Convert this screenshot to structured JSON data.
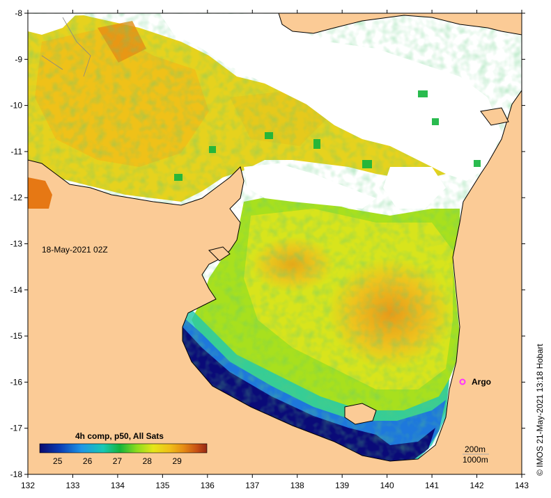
{
  "map": {
    "date_label": "18-May-2021 02Z",
    "credit": "© IMOS 21-May-2021 13:18 Hobart",
    "argo_label": "Argo",
    "depth_labels": [
      "200m",
      "1000m"
    ],
    "x_ticks": [
      "132",
      "133",
      "134",
      "135",
      "136",
      "137",
      "138",
      "139",
      "140",
      "141",
      "142",
      "143"
    ],
    "y_ticks": [
      "-8",
      "-9",
      "-10",
      "-11",
      "-12",
      "-13",
      "-14",
      "-15",
      "-16",
      "-17",
      "-18"
    ],
    "x_range": [
      132,
      143
    ],
    "y_range": [
      -18,
      -8
    ]
  },
  "legend": {
    "title": "4h comp, p50, All Sats",
    "ticks": [
      "25",
      "26",
      "27",
      "28",
      "29"
    ],
    "range": [
      24.4,
      30
    ]
  },
  "colors": {
    "land": "#fbcb96",
    "cloud": "#ffffff",
    "argo": "#ff33ff",
    "sst_scale": [
      "#0a0a6e",
      "#0a3cb4",
      "#1e96e6",
      "#19c8b4",
      "#14b43c",
      "#8cdc1e",
      "#e6e619",
      "#f0be19",
      "#e68c14",
      "#c85014",
      "#962814"
    ]
  }
}
